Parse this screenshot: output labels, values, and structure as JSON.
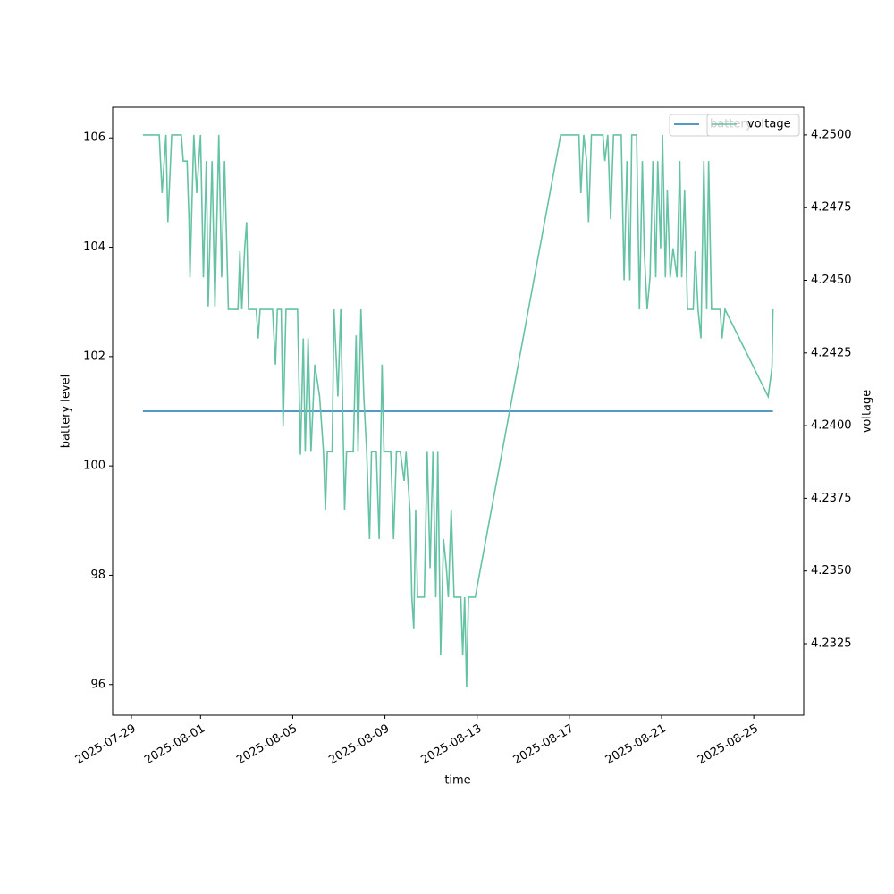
{
  "chart_data": {
    "type": "line",
    "xlabel": "time",
    "ylabel": "battery level",
    "y2label": "voltage",
    "xlim": [
      "2025-07-28T04:30",
      "2025-08-27T04:00"
    ],
    "xticks": [
      "2025-07-29",
      "2025-08-01",
      "2025-08-05",
      "2025-08-09",
      "2025-08-13",
      "2025-08-17",
      "2025-08-21",
      "2025-08-25"
    ],
    "ylim": [
      95.44,
      106.56
    ],
    "yticks": [
      96,
      98,
      100,
      102,
      104,
      106
    ],
    "y2lim": [
      4.23004,
      4.25095
    ],
    "y2ticks": [
      4.2325,
      {
        "value": 4.235,
        "label": "4.2350"
      },
      4.2375,
      {
        "value": 4.24,
        "label": "4.2400"
      },
      4.2425,
      {
        "value": 4.245,
        "label": "4.2450"
      },
      4.2475,
      {
        "value": 4.25,
        "label": "4.2500"
      }
    ],
    "legend": "upper right",
    "series": [
      {
        "name": "battery",
        "color": "#1f77b4",
        "x": [
          "2025-07-29T12:00",
          "2025-08-25T20:00"
        ],
        "values": [
          101,
          101
        ]
      },
      {
        "name": "voltage",
        "color": "#66c2a5",
        "axis": "y2",
        "x": [
          "2025-07-29T12:00",
          "2025-07-30T05:00",
          "2025-07-30T08:00",
          "2025-07-30T12:00",
          "2025-07-30T14:00",
          "2025-07-30T18:00",
          "2025-07-31T04:00",
          "2025-07-31T06:00",
          "2025-07-31T10:00",
          "2025-07-31T12:00",
          "2025-07-31T13:00",
          "2025-07-31T17:00",
          "2025-07-31T20:00",
          "2025-08-01T00:00",
          "2025-08-01T03:00",
          "2025-08-01T06:00",
          "2025-08-01T08:00",
          "2025-08-01T12:00",
          "2025-08-01T15:00",
          "2025-08-01T19:00",
          "2025-08-01T22:00",
          "2025-08-02T01:00",
          "2025-08-02T05:00",
          "2025-08-02T15:00",
          "2025-08-02T17:00",
          "2025-08-02T19:00",
          "2025-08-02T22:00",
          "2025-08-03T00:00",
          "2025-08-03T02:00",
          "2025-08-03T10:00",
          "2025-08-03T12:00",
          "2025-08-03T14:00",
          "2025-08-03T22:00",
          "2025-08-04T03:00",
          "2025-08-04T06:00",
          "2025-08-04T08:00",
          "2025-08-04T12:00",
          "2025-08-04T14:00",
          "2025-08-04T17:00",
          "2025-08-05T05:00",
          "2025-08-05T08:00",
          "2025-08-05T11:00",
          "2025-08-05T13:00",
          "2025-08-05T16:00",
          "2025-08-05T19:00",
          "2025-08-05T23:00",
          "2025-08-06T04:00",
          "2025-08-06T08:00",
          "2025-08-06T10:00",
          "2025-08-06T12:00",
          "2025-08-06T17:00",
          "2025-08-06T19:00",
          "2025-08-06T23:00",
          "2025-08-07T02:00",
          "2025-08-07T06:00",
          "2025-08-07T08:00",
          "2025-08-07T15:00",
          "2025-08-07T18:00",
          "2025-08-07T20:00",
          "2025-08-07T23:00",
          "2025-08-08T02:00",
          "2025-08-08T05:00",
          "2025-08-08T08:00",
          "2025-08-08T10:00",
          "2025-08-08T15:00",
          "2025-08-08T18:00",
          "2025-08-08T21:00",
          "2025-08-08T23:00",
          "2025-08-09T06:00",
          "2025-08-09T09:00",
          "2025-08-09T12:00",
          "2025-08-09T16:00",
          "2025-08-09T20:00",
          "2025-08-09T22:00",
          "2025-08-10T02:00",
          "2025-08-10T04:00",
          "2025-08-10T06:00",
          "2025-08-10T08:00",
          "2025-08-10T10:00",
          "2025-08-10T17:00",
          "2025-08-10T20:00",
          "2025-08-10T23:00",
          "2025-08-11T02:00",
          "2025-08-11T05:00",
          "2025-08-11T07:00",
          "2025-08-11T10:00",
          "2025-08-11T13:00",
          "2025-08-11T16:00",
          "2025-08-11T18:00",
          "2025-08-11T21:00",
          "2025-08-12T00:00",
          "2025-08-12T07:00",
          "2025-08-12T09:00",
          "2025-08-12T11:00",
          "2025-08-12T13:00",
          "2025-08-12T15:00",
          "2025-08-12T22:00",
          "2025-08-16T15:00",
          "2025-08-17T10:00",
          "2025-08-17T12:00",
          "2025-08-17T15:00",
          "2025-08-17T18:00",
          "2025-08-17T20:00",
          "2025-08-17T23:00",
          "2025-08-18T11:00",
          "2025-08-18T13:00",
          "2025-08-18T16:00",
          "2025-08-18T19:00",
          "2025-08-18T22:00",
          "2025-08-19T06:00",
          "2025-08-19T09:00",
          "2025-08-19T12:00",
          "2025-08-19T15:00",
          "2025-08-19T17:00",
          "2025-08-19T22:00",
          "2025-08-20T01:00",
          "2025-08-20T04:00",
          "2025-08-20T06:00",
          "2025-08-20T09:00",
          "2025-08-20T12:00",
          "2025-08-20T15:00",
          "2025-08-20T18:00",
          "2025-08-20T20:00",
          "2025-08-20T23:00",
          "2025-08-21T01:00",
          "2025-08-21T04:00",
          "2025-08-21T06:00",
          "2025-08-21T09:00",
          "2025-08-21T12:00",
          "2025-08-21T16:00",
          "2025-08-21T19:00",
          "2025-08-21T21:00",
          "2025-08-22T00:00",
          "2025-08-22T03:00",
          "2025-08-22T09:00",
          "2025-08-22T11:00",
          "2025-08-22T14:00",
          "2025-08-22T17:00",
          "2025-08-22T20:00",
          "2025-08-22T23:00",
          "2025-08-23T01:00",
          "2025-08-23T04:00",
          "2025-08-23T13:00",
          "2025-08-23T15:00",
          "2025-08-23T18:00",
          "2025-08-25T15:00",
          "2025-08-25T19:00",
          "2025-08-25T20:00"
        ],
        "values": [
          4.25,
          4.25,
          4.248,
          4.25,
          4.247,
          4.25,
          4.25,
          4.2491,
          4.2491,
          4.2471,
          4.2451,
          4.25,
          4.248,
          4.25,
          4.2451,
          4.2491,
          4.2441,
          4.2491,
          4.2441,
          4.25,
          4.2451,
          4.2491,
          4.244,
          4.244,
          4.246,
          4.244,
          4.2461,
          4.247,
          4.244,
          4.244,
          4.243,
          4.244,
          4.244,
          4.244,
          4.2421,
          4.244,
          4.244,
          4.24,
          4.244,
          4.244,
          4.239,
          4.243,
          4.2391,
          4.243,
          4.2391,
          4.2421,
          4.241,
          4.2391,
          4.2371,
          4.2391,
          4.2391,
          4.244,
          4.241,
          4.244,
          4.2371,
          4.2391,
          4.2391,
          4.2431,
          4.2391,
          4.244,
          4.241,
          4.2391,
          4.2361,
          4.2391,
          4.2391,
          4.2361,
          4.2421,
          4.2391,
          4.2391,
          4.2361,
          4.2391,
          4.2391,
          4.2381,
          4.2391,
          4.2371,
          4.2341,
          4.233,
          4.2371,
          4.2341,
          4.2341,
          4.2391,
          4.2351,
          4.2391,
          4.2341,
          4.2391,
          4.2321,
          4.2361,
          4.2351,
          4.2341,
          4.2371,
          4.2341,
          4.2341,
          4.2321,
          4.2341,
          4.231,
          4.2341,
          4.2341,
          4.25,
          4.25,
          4.248,
          4.25,
          4.2491,
          4.247,
          4.25,
          4.25,
          4.2491,
          4.25,
          4.2471,
          4.25,
          4.25,
          4.245,
          4.2491,
          4.245,
          4.25,
          4.25,
          4.244,
          4.2491,
          4.246,
          4.244,
          4.2451,
          4.2491,
          4.2451,
          4.2491,
          4.2461,
          4.25,
          4.2451,
          4.2481,
          4.2451,
          4.2461,
          4.2451,
          4.2491,
          4.2451,
          4.2481,
          4.244,
          4.244,
          4.246,
          4.244,
          4.243,
          4.2491,
          4.244,
          4.2491,
          4.244,
          4.244,
          4.243,
          4.244,
          4.241,
          4.242,
          4.244
        ]
      }
    ]
  }
}
